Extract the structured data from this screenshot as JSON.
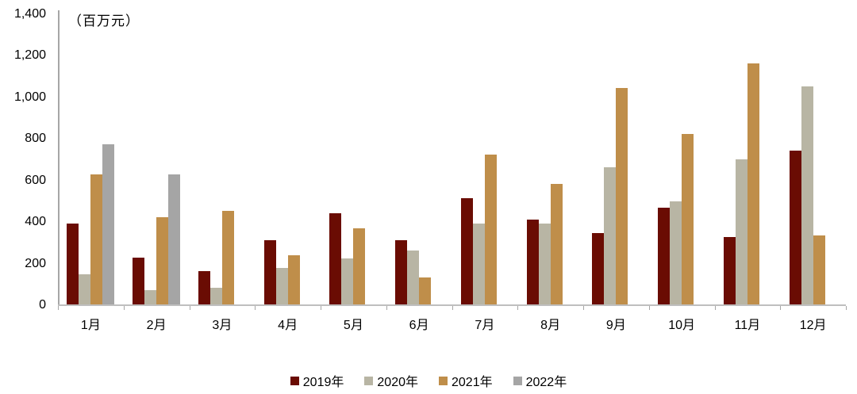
{
  "chart_data": {
    "type": "bar",
    "title": "",
    "unit_label": "（百万元）",
    "categories": [
      "1月",
      "2月",
      "3月",
      "4月",
      "5月",
      "6月",
      "7月",
      "8月",
      "9月",
      "10月",
      "11月",
      "12月"
    ],
    "series": [
      {
        "name": "2019年",
        "color": "#6a0c03",
        "values": [
          390,
          225,
          160,
          310,
          440,
          310,
          510,
          410,
          345,
          465,
          325,
          740
        ]
      },
      {
        "name": "2020年",
        "color": "#b8b5a4",
        "values": [
          145,
          70,
          80,
          175,
          220,
          260,
          390,
          390,
          660,
          495,
          700,
          1050
        ]
      },
      {
        "name": "2021年",
        "color": "#bf8e4a",
        "values": [
          625,
          420,
          450,
          235,
          365,
          130,
          720,
          580,
          1040,
          820,
          1160,
          330
        ]
      },
      {
        "name": "2022年",
        "color": "#a5a5a5",
        "values": [
          770,
          625,
          null,
          null,
          null,
          null,
          null,
          null,
          null,
          null,
          null,
          null
        ]
      }
    ],
    "ylim": [
      0,
      1400
    ],
    "ytick_interval": 200,
    "ytick_labels": [
      "0",
      "200",
      "400",
      "600",
      "800",
      "1,000",
      "1,200",
      "1,400"
    ],
    "grid": false,
    "legend_position": "bottom",
    "axis_color": "#a6a6a6",
    "x_axis_color": "#bfbfbf",
    "text_color": "#000000"
  }
}
